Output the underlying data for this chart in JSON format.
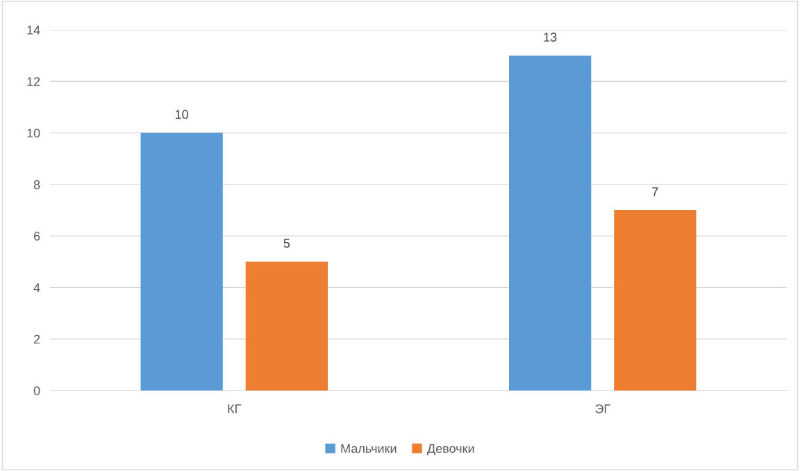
{
  "chart_data": {
    "type": "bar",
    "categories": [
      "КГ",
      "ЭГ"
    ],
    "series": [
      {
        "name": "Мальчики",
        "color": "#5b9bd5",
        "values": [
          10,
          13
        ]
      },
      {
        "name": "Девочки",
        "color": "#ed7d31",
        "values": [
          5,
          7
        ]
      }
    ],
    "ylim": [
      0,
      14
    ],
    "yticks": [
      0,
      2,
      4,
      6,
      8,
      10,
      12,
      14
    ],
    "grid": "y",
    "legend": "bottom",
    "data_labels": true
  }
}
